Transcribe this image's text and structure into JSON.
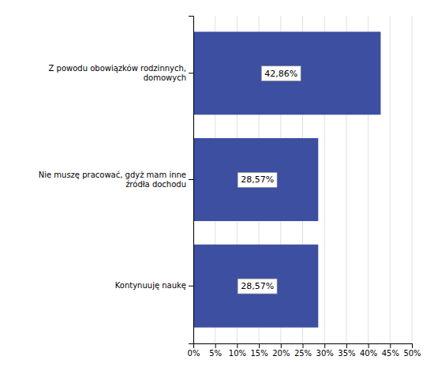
{
  "chart_data": {
    "type": "bar",
    "orientation": "horizontal",
    "categories": [
      "Kontynuuję naukę",
      "Nie muszę pracować, gdyż mam inne\nźródła dochodu",
      "Z powodu obowiązków rodzinnych,\ndomowych"
    ],
    "values": [
      28.57,
      28.57,
      42.86
    ],
    "value_labels": [
      "28,57%",
      "28,57%",
      "42,86%"
    ],
    "data_labels": true,
    "color": "#3C4FA0",
    "xlim": [
      0,
      50
    ],
    "xticks": [
      {
        "value": 0,
        "label": "0%"
      },
      {
        "value": 5,
        "label": "5%"
      },
      {
        "value": 10,
        "label": "10%"
      },
      {
        "value": 15,
        "label": "15%"
      },
      {
        "value": 20,
        "label": "20%"
      },
      {
        "value": 25,
        "label": "25%"
      },
      {
        "value": 30,
        "label": "30%"
      },
      {
        "value": 35,
        "label": "35%"
      },
      {
        "value": 40,
        "label": "40%"
      },
      {
        "value": 45,
        "label": "45%"
      },
      {
        "value": 50,
        "label": "50%"
      }
    ],
    "grid": true
  }
}
